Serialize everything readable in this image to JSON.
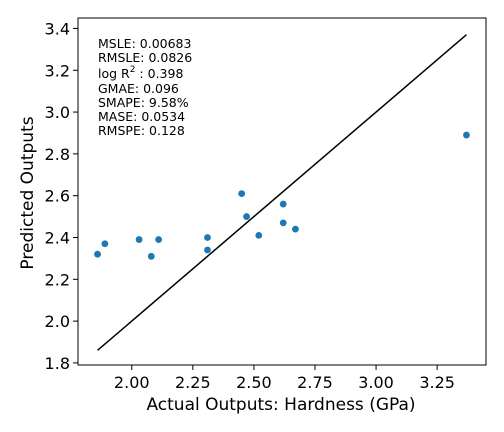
{
  "chart_data": {
    "type": "scatter",
    "xlabel": "Actual Outputs: Hardness (GPa)",
    "ylabel": "Predicted Outputs",
    "xlim": [
      1.78,
      3.45
    ],
    "ylim": [
      1.79,
      3.45
    ],
    "xticks": [
      2.0,
      2.25,
      2.5,
      2.75,
      3.0,
      3.25
    ],
    "xtick_labels": [
      "2.00",
      "2.25",
      "2.50",
      "2.75",
      "3.00",
      "3.25"
    ],
    "yticks": [
      1.8,
      2.0,
      2.2,
      2.4,
      2.6,
      2.8,
      3.0,
      3.2,
      3.4
    ],
    "ytick_labels": [
      "1.8",
      "2.0",
      "2.2",
      "2.4",
      "2.6",
      "2.8",
      "3.0",
      "3.2",
      "3.4"
    ],
    "grid": false,
    "point_color": "#1f77b4",
    "points": [
      {
        "x": 1.86,
        "y": 2.32
      },
      {
        "x": 1.89,
        "y": 2.37
      },
      {
        "x": 2.03,
        "y": 2.39
      },
      {
        "x": 2.08,
        "y": 2.31
      },
      {
        "x": 2.11,
        "y": 2.39
      },
      {
        "x": 2.31,
        "y": 2.4
      },
      {
        "x": 2.31,
        "y": 2.34
      },
      {
        "x": 2.45,
        "y": 2.61
      },
      {
        "x": 2.47,
        "y": 2.5
      },
      {
        "x": 2.52,
        "y": 2.41
      },
      {
        "x": 2.62,
        "y": 2.56
      },
      {
        "x": 2.62,
        "y": 2.47
      },
      {
        "x": 2.67,
        "y": 2.44
      },
      {
        "x": 3.37,
        "y": 2.89
      }
    ],
    "reference_line": {
      "x": [
        1.86,
        3.37
      ],
      "y": [
        1.86,
        3.37
      ],
      "color": "#000000"
    },
    "annotations": {
      "msle": "MSLE: 0.00683",
      "rmsle": "RMSLE: 0.0826",
      "logr2_prefix": "log R",
      "logr2_sup": "2",
      "logr2_suffix": " : 0.398",
      "gmae": "GMAE: 0.096",
      "smape": "SMAPE: 9.58%",
      "mase": "MASE: 0.0534",
      "rmspe": "RMSPE: 0.128"
    }
  }
}
